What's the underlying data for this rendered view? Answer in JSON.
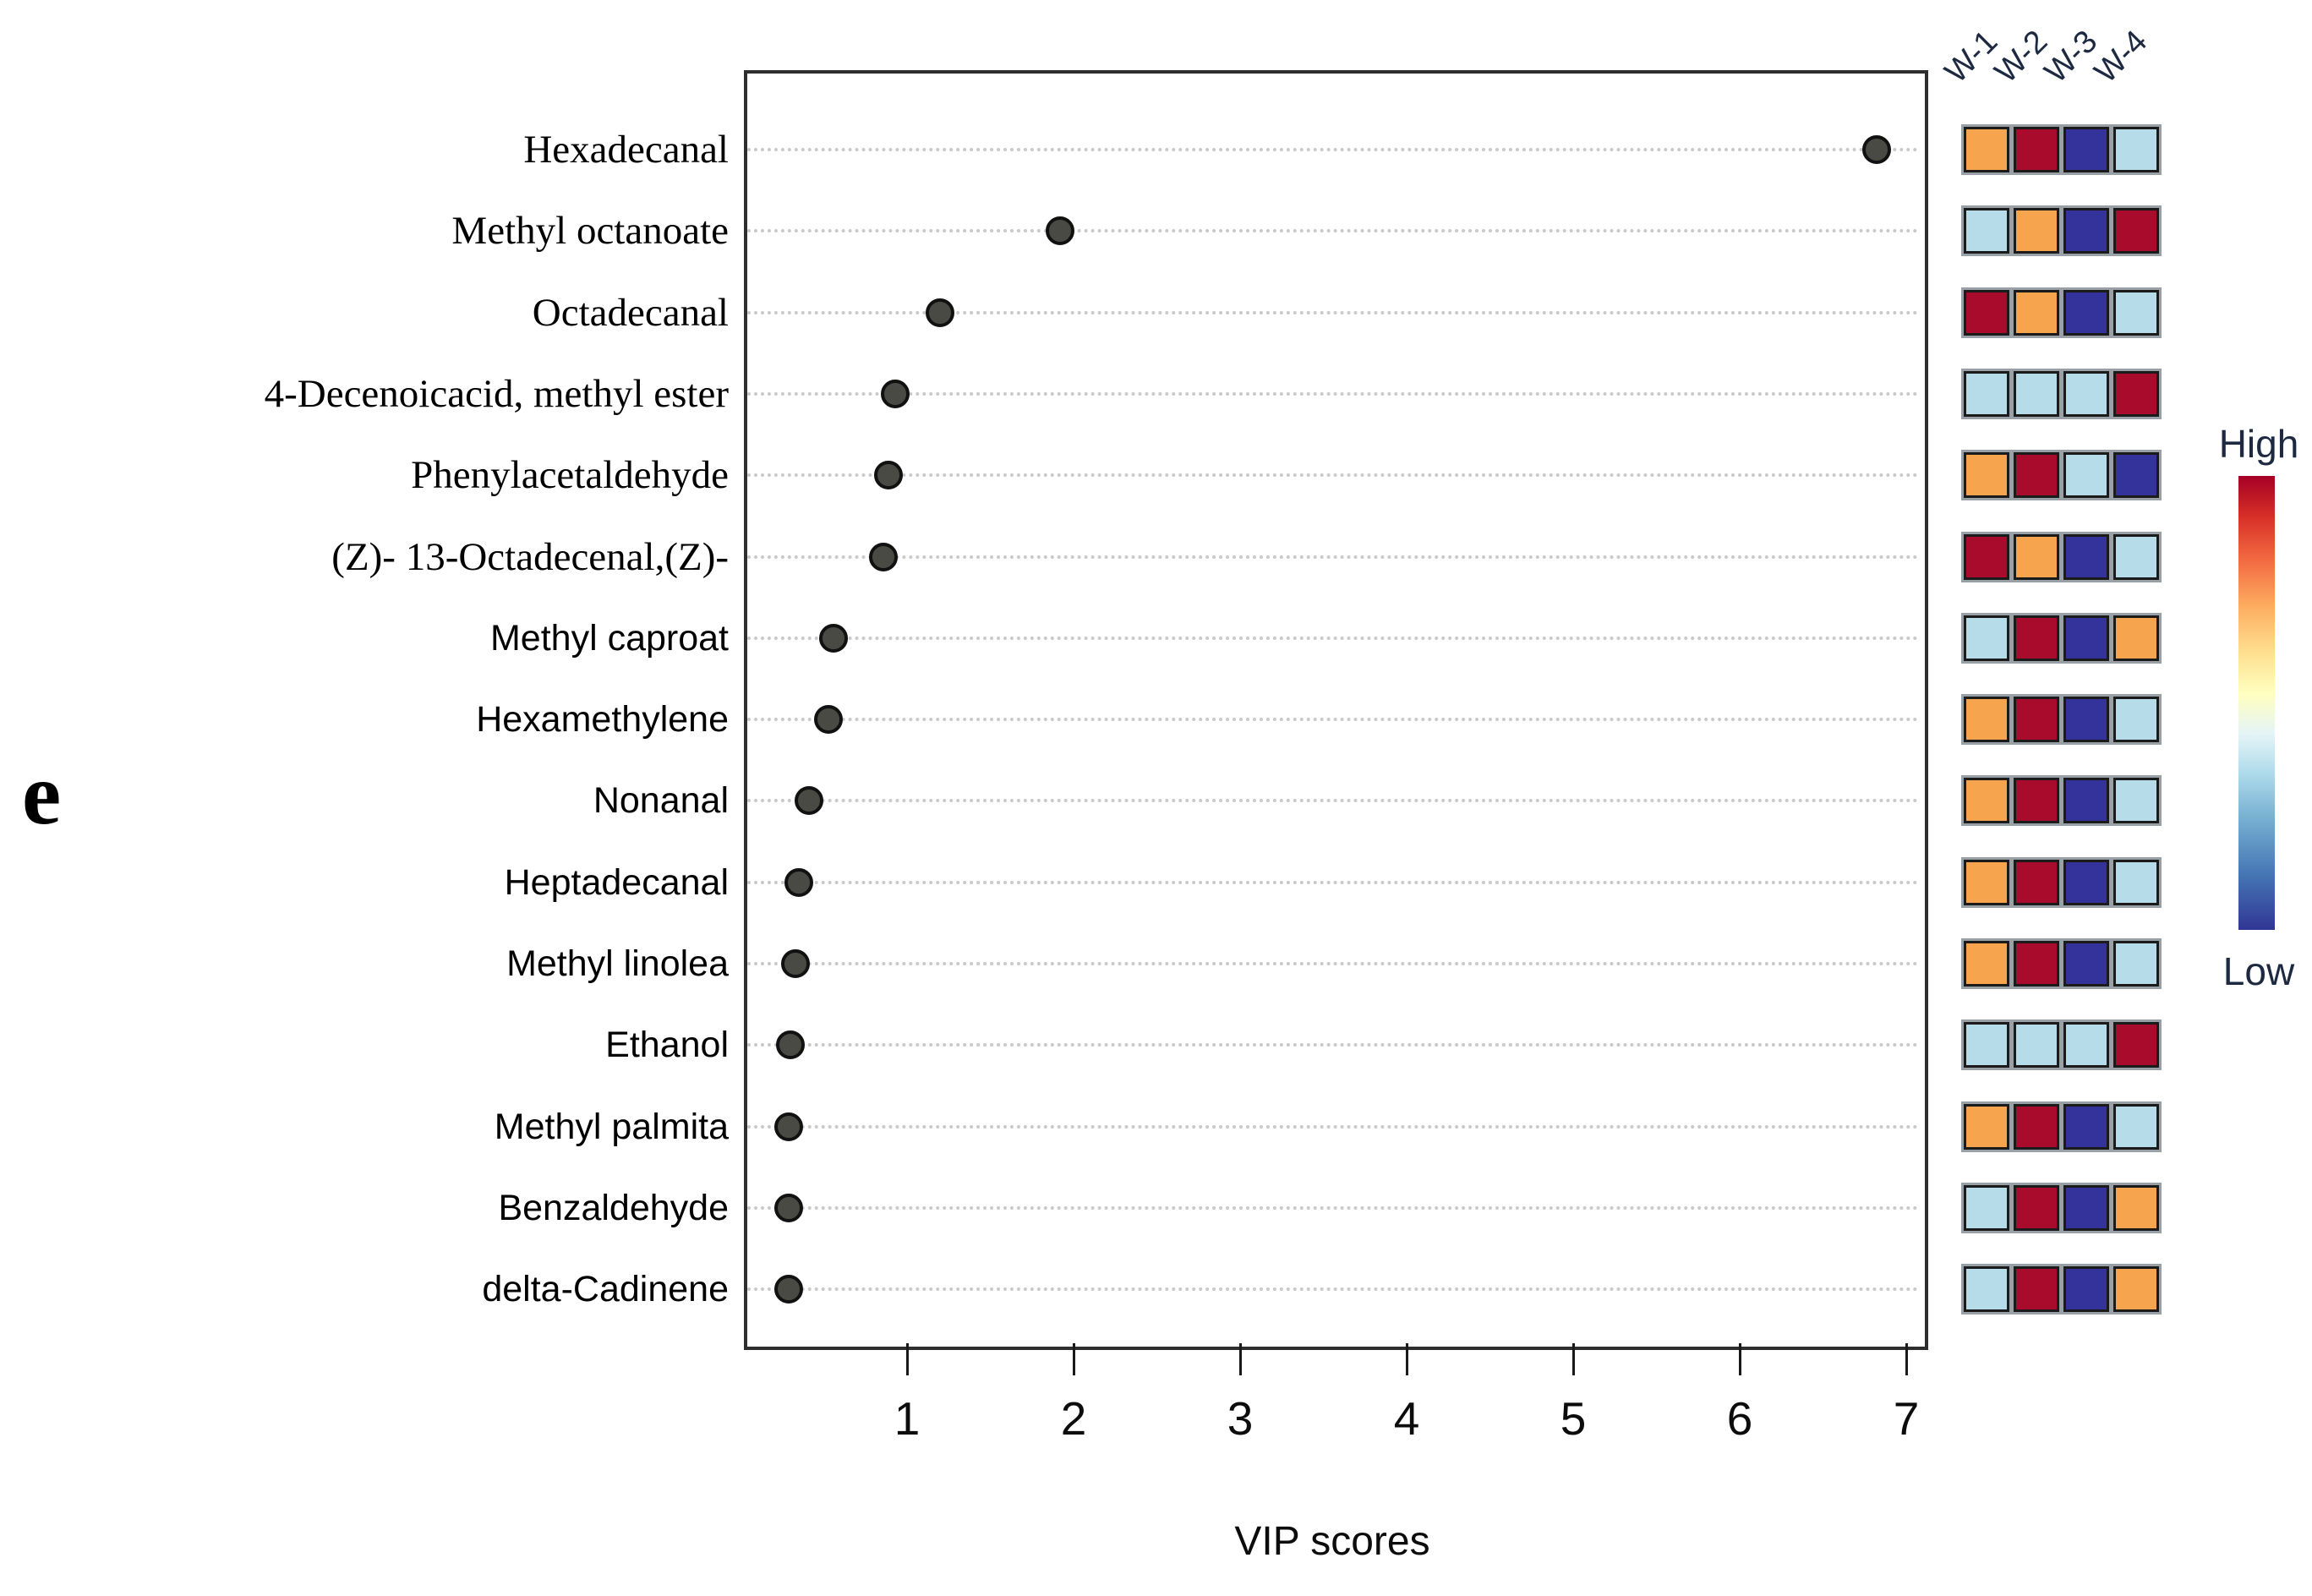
{
  "panel_label": "e",
  "chart_data": {
    "type": "scatter",
    "title": "",
    "xlabel": "VIP scores",
    "xlim": [
      0.02,
      7.09
    ],
    "x_ticks": [
      "1",
      "2",
      "3",
      "4",
      "5",
      "6",
      "7"
    ],
    "grid": "dotted-horizontal",
    "legend_position": "right",
    "categories": [
      "Hexadecanal",
      "Methyl octanoate",
      "Octadecanal",
      "4-Decenoicacid, methyl ester",
      "Phenylacetaldehyde",
      "(Z)- 13-Octadecenal,(Z)-",
      "Methyl caproat",
      "Hexamethylene",
      "Nonanal",
      "Heptadecanal",
      "Methyl linolea",
      "Ethanol",
      "Methyl palmita",
      "Benzaldehyde",
      "delta-Cadinene"
    ],
    "values": [
      6.82,
      1.92,
      1.2,
      0.93,
      0.89,
      0.86,
      0.56,
      0.53,
      0.41,
      0.35,
      0.33,
      0.3,
      0.29,
      0.29,
      0.29
    ],
    "serif_labels": [
      true,
      true,
      true,
      true,
      true,
      true,
      false,
      false,
      false,
      false,
      false,
      false,
      false,
      false,
      false
    ],
    "heatmap_columns": [
      "W-1",
      "W-2",
      "W-3",
      "W-4"
    ],
    "heatmap_cells": [
      [
        "orange",
        "red",
        "blue",
        "lightblue"
      ],
      [
        "lightblue",
        "orange",
        "blue",
        "red"
      ],
      [
        "red",
        "orange",
        "blue",
        "lightblue"
      ],
      [
        "lightblue",
        "lightblue",
        "lightblue",
        "red"
      ],
      [
        "orange",
        "red",
        "lightblue",
        "blue"
      ],
      [
        "red",
        "orange",
        "blue",
        "lightblue"
      ],
      [
        "lightblue",
        "red",
        "blue",
        "orange"
      ],
      [
        "orange",
        "red",
        "blue",
        "lightblue"
      ],
      [
        "orange",
        "red",
        "blue",
        "lightblue"
      ],
      [
        "orange",
        "red",
        "blue",
        "lightblue"
      ],
      [
        "orange",
        "red",
        "blue",
        "lightblue"
      ],
      [
        "lightblue",
        "lightblue",
        "lightblue",
        "red"
      ],
      [
        "orange",
        "red",
        "blue",
        "lightblue"
      ],
      [
        "lightblue",
        "red",
        "blue",
        "orange"
      ],
      [
        "lightblue",
        "red",
        "blue",
        "orange"
      ]
    ],
    "colorbar": {
      "high_label": "High",
      "low_label": "Low"
    }
  },
  "colors": {
    "orange": "#F7A44F",
    "red": "#A90B2D",
    "blue": "#33339B",
    "lightblue": "#B5DCE8",
    "dot_fill": "#4A4A45",
    "dot_border": "#111111",
    "gridline": "#C9C9C9",
    "legend_text": "#1C2940",
    "colorbar_gradient": [
      "#A50026",
      "#D73027",
      "#F46D43",
      "#FDAE61",
      "#FEE090",
      "#FFFFBF",
      "#E4F4F8",
      "#ABD9E9",
      "#74ADD1",
      "#4575B4",
      "#313695"
    ]
  }
}
